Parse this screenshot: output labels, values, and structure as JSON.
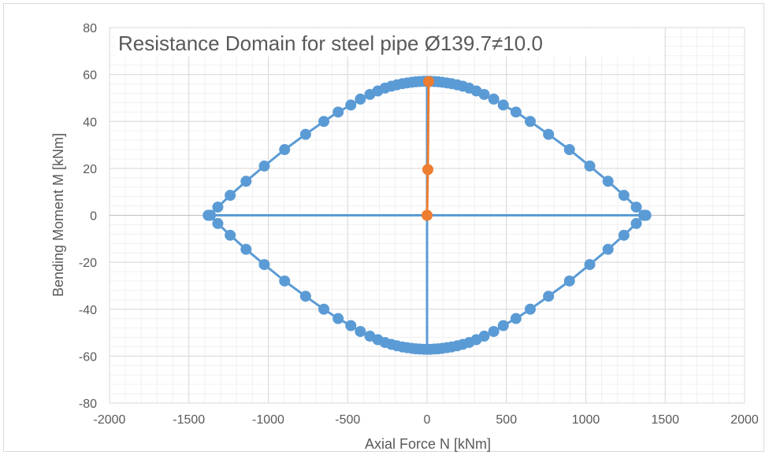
{
  "chart_data": {
    "type": "scatter",
    "title": "Resistance Domain for steel pipe Ø139.7≠10.0",
    "xlabel": "Axial Force N [kNm]",
    "ylabel": "Bending Moment M [kNm]",
    "xlim": [
      -2000,
      2000
    ],
    "ylim": [
      -80,
      80
    ],
    "xticks": [
      -2000,
      -1500,
      -1000,
      -500,
      0,
      500,
      1000,
      1500,
      2000
    ],
    "yticks": [
      -80,
      -60,
      -40,
      -20,
      0,
      20,
      40,
      60,
      80
    ],
    "grid": "major and minor",
    "series": [
      {
        "color": "#5B9BD5",
        "x": [
          -1378,
          -1365,
          -1318,
          -1240,
          -1140,
          -1025,
          -897,
          -765,
          -650,
          -560,
          -480,
          -420,
          -360,
          -310,
          -265,
          -225,
          -190,
          -155,
          -125,
          -95,
          -70,
          -45,
          -20,
          0,
          20,
          45,
          70,
          95,
          125,
          155,
          190,
          225,
          265,
          310,
          360,
          420,
          480,
          560,
          650,
          765,
          897,
          1025,
          1140,
          1240,
          1318,
          1365,
          1378
        ],
        "y": [
          0,
          0,
          3.5,
          8.5,
          14.5,
          21,
          28,
          34.5,
          40,
          44,
          47,
          49.5,
          51.5,
          53,
          54.2,
          55,
          55.6,
          56.1,
          56.4,
          56.7,
          56.9,
          57,
          57.1,
          57.1,
          57.1,
          57,
          56.9,
          56.7,
          56.4,
          56.1,
          55.6,
          55,
          54.2,
          53,
          51.5,
          49.5,
          47,
          44,
          40,
          34.5,
          28,
          21,
          14.5,
          8.5,
          3.5,
          0,
          0
        ]
      },
      {
        "color": "#5B9BD5",
        "x": [
          -1378,
          -1365,
          -1318,
          -1240,
          -1140,
          -1025,
          -897,
          -765,
          -650,
          -560,
          -480,
          -420,
          -360,
          -310,
          -265,
          -225,
          -190,
          -155,
          -125,
          -95,
          -70,
          -45,
          -20,
          0,
          20,
          45,
          70,
          95,
          125,
          155,
          190,
          225,
          265,
          310,
          360,
          420,
          480,
          560,
          650,
          765,
          897,
          1025,
          1140,
          1240,
          1318,
          1365,
          1378
        ],
        "y": [
          0,
          0,
          -3.5,
          -8.5,
          -14.5,
          -21,
          -28,
          -34.5,
          -40,
          -44,
          -47,
          -49.5,
          -51.5,
          -53,
          -54.2,
          -55,
          -55.6,
          -56.1,
          -56.4,
          -56.7,
          -56.9,
          -57,
          -57.1,
          -57.1,
          -57.1,
          -57,
          -56.9,
          -56.7,
          -56.4,
          -56.1,
          -55.6,
          -55,
          -54.2,
          -53,
          -51.5,
          -49.5,
          -47,
          -44,
          -40,
          -34.5,
          -28,
          -21,
          -14.5,
          -8.5,
          -3.5,
          0,
          0
        ]
      },
      {
        "color": "#5B9BD5",
        "markers": false,
        "x": [
          -1378,
          1378
        ],
        "y": [
          0,
          0
        ]
      },
      {
        "color": "#5B9BD5",
        "markers": false,
        "x": [
          0,
          0
        ],
        "y": [
          -57.1,
          57.1
        ]
      },
      {
        "color": "#ED7D31",
        "x": [
          0,
          5,
          10
        ],
        "y": [
          0,
          19.5,
          57
        ]
      }
    ]
  }
}
